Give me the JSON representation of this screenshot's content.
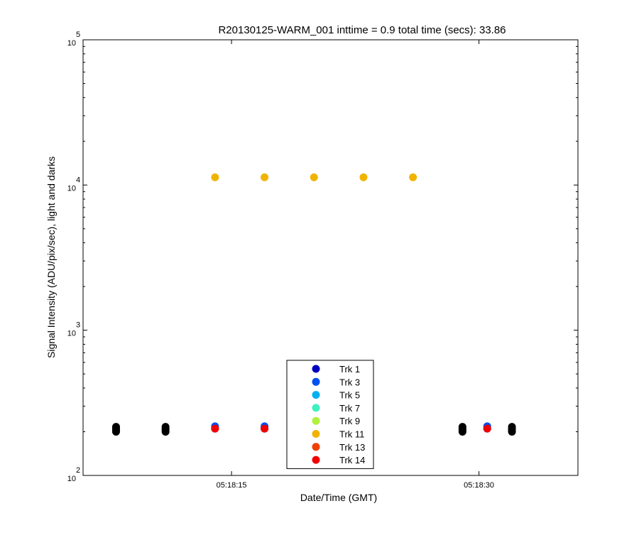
{
  "chart_data": {
    "type": "scatter",
    "title": "R20130125-WARM_001 inttime = 0.9 total time (secs): 33.86",
    "xlabel": "Date/Time (GMT)",
    "ylabel": "Signal Intensity (ADU/pix/sec), light and darks",
    "y_scale": "log",
    "ylim": [
      100,
      100000
    ],
    "xlim": [
      "05:18:06",
      "05:18:36"
    ],
    "x_ticks": [
      "05:18:15",
      "05:18:30"
    ],
    "y_ticks": [
      {
        "value": 100,
        "base": "10",
        "exp": "2"
      },
      {
        "value": 1000,
        "base": "10",
        "exp": "3"
      },
      {
        "value": 10000,
        "base": "10",
        "exp": "4"
      },
      {
        "value": 100000,
        "base": "10",
        "exp": "5"
      }
    ],
    "legend_position": "bottom-center",
    "series": [
      {
        "name": "Trk 1",
        "color": "#0000c0",
        "points": [
          [
            "05:18:14",
            210
          ],
          [
            "05:18:17",
            210
          ],
          [
            "05:18:30.5",
            210
          ]
        ]
      },
      {
        "name": "Trk 3",
        "color": "#0050f0",
        "points": [
          [
            "05:18:14",
            218
          ],
          [
            "05:18:17",
            218
          ],
          [
            "05:18:30.5",
            218
          ]
        ]
      },
      {
        "name": "Trk 5",
        "color": "#00b0f0",
        "points": []
      },
      {
        "name": "Trk 7",
        "color": "#40f0c0",
        "points": []
      },
      {
        "name": "Trk 9",
        "color": "#b0f040",
        "points": []
      },
      {
        "name": "Trk 11",
        "color": "#f0b400",
        "points": [
          [
            "05:18:14",
            11300
          ],
          [
            "05:18:17",
            11300
          ],
          [
            "05:18:20",
            11300
          ],
          [
            "05:18:23",
            11300
          ],
          [
            "05:18:26",
            11300
          ]
        ]
      },
      {
        "name": "Trk 13",
        "color": "#f04000",
        "points": []
      },
      {
        "name": "Trk 14",
        "color": "#f00000",
        "points": [
          [
            "05:18:14",
            210
          ],
          [
            "05:18:17",
            210
          ],
          [
            "05:18:30.5",
            210
          ]
        ]
      }
    ],
    "dark_series": {
      "color": "#000000",
      "points": [
        [
          "05:18:08",
          200
        ],
        [
          "05:18:08",
          205
        ],
        [
          "05:18:08",
          210
        ],
        [
          "05:18:08",
          216
        ],
        [
          "05:18:11",
          200
        ],
        [
          "05:18:11",
          205
        ],
        [
          "05:18:11",
          210
        ],
        [
          "05:18:11",
          216
        ],
        [
          "05:18:29",
          200
        ],
        [
          "05:18:29",
          205
        ],
        [
          "05:18:29",
          210
        ],
        [
          "05:18:29",
          216
        ],
        [
          "05:18:32",
          200
        ],
        [
          "05:18:32",
          205
        ],
        [
          "05:18:32",
          210
        ],
        [
          "05:18:32",
          216
        ]
      ]
    }
  }
}
